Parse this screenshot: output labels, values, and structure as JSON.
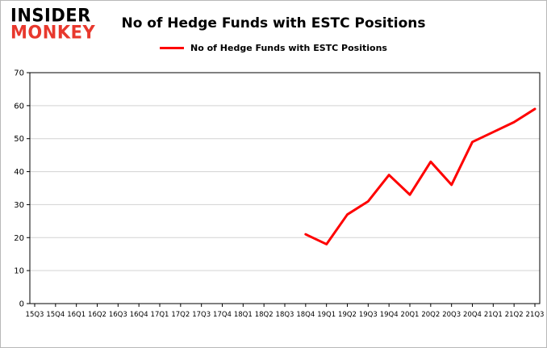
{
  "logo": {
    "line1": "INSIDER",
    "line2": "MONKEY"
  },
  "colors": {
    "line": "#fe0000",
    "logo_monkey": "#e8382d",
    "grid": "#d3d3d3",
    "axis": "#000000"
  },
  "chart_data": {
    "type": "line",
    "title": "No of Hedge Funds with ESTC Positions",
    "xlabel": "",
    "ylabel": "",
    "ylim": [
      0,
      70
    ],
    "yticks": [
      0,
      10,
      20,
      30,
      40,
      50,
      60,
      70
    ],
    "grid": "horizontal",
    "legend_position": "top-center",
    "categories": [
      "15Q3",
      "15Q4",
      "16Q1",
      "16Q2",
      "16Q3",
      "16Q4",
      "17Q1",
      "17Q2",
      "17Q3",
      "17Q4",
      "18Q1",
      "18Q2",
      "18Q3",
      "18Q4",
      "19Q1",
      "19Q2",
      "19Q3",
      "19Q4",
      "20Q1",
      "20Q2",
      "20Q3",
      "20Q4",
      "21Q1",
      "21Q2",
      "21Q3"
    ],
    "series": [
      {
        "name": "No of Hedge Funds with ESTC Positions",
        "color": "#fe0000",
        "values": [
          null,
          null,
          null,
          null,
          null,
          null,
          null,
          null,
          null,
          null,
          null,
          null,
          null,
          21,
          18,
          27,
          31,
          39,
          33,
          43,
          36,
          49,
          52,
          55,
          59
        ]
      }
    ]
  }
}
